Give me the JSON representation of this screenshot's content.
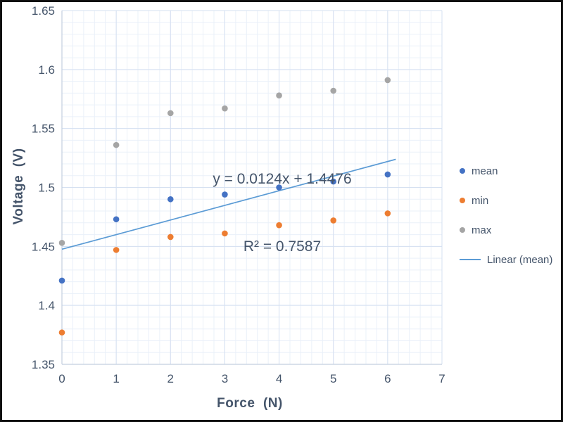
{
  "colors": {
    "text": "#44546a",
    "grid_minor": "#eaf0f9",
    "grid_major": "#d5e0f1",
    "axis_line": "#c3cfdf",
    "mean": "#4472c4",
    "min": "#ed7d31",
    "max": "#a5a5a5",
    "trendline": "#5b9bd5",
    "background": "#ffffff",
    "frame_border": "#101010"
  },
  "chart_data": {
    "type": "scatter",
    "title": "",
    "xlabel": "Force  (N)",
    "ylabel": "Voltage  (V)",
    "xlim": [
      0,
      7
    ],
    "ylim": [
      1.35,
      1.65
    ],
    "grid": "on",
    "minor_x_step": 0.2,
    "minor_y_step": 0.01,
    "x_ticks": [
      0,
      1,
      2,
      3,
      4,
      5,
      6,
      7
    ],
    "x_tick_labels": [
      "0",
      "1",
      "2",
      "3",
      "4",
      "5",
      "6",
      "7"
    ],
    "y_ticks": [
      1.35,
      1.4,
      1.45,
      1.5,
      1.55,
      1.6,
      1.65
    ],
    "y_tick_labels": [
      "1.35",
      "1.4",
      "1.45",
      "1.5",
      "1.55",
      "1.6",
      "1.65"
    ],
    "x": [
      0,
      1,
      2,
      3,
      4,
      5,
      6
    ],
    "series": [
      {
        "name": "mean",
        "color_key": "mean",
        "values": [
          1.421,
          1.473,
          1.49,
          1.494,
          1.5,
          1.505,
          1.511
        ]
      },
      {
        "name": "min",
        "color_key": "min",
        "values": [
          1.377,
          1.447,
          1.458,
          1.461,
          1.468,
          1.472,
          1.478
        ]
      },
      {
        "name": "max",
        "color_key": "max",
        "values": [
          1.453,
          1.536,
          1.563,
          1.567,
          1.578,
          1.582,
          1.591
        ]
      }
    ],
    "trendline": {
      "name": "Linear (mean)",
      "slope": 0.0124,
      "intercept": 1.4476,
      "x_start": 0,
      "x_end": 6.15,
      "color_key": "trendline"
    },
    "annotation": {
      "line1": "y = 0.0124x + 1.4476",
      "line2": "R² = 0.7587"
    },
    "legend_position": "right",
    "legend": [
      {
        "label": "mean",
        "marker": "dot",
        "color_key": "mean"
      },
      {
        "label": "min",
        "marker": "dot",
        "color_key": "min"
      },
      {
        "label": "max",
        "marker": "dot",
        "color_key": "max"
      },
      {
        "label": "Linear (mean)",
        "marker": "line",
        "color_key": "trendline"
      }
    ]
  }
}
